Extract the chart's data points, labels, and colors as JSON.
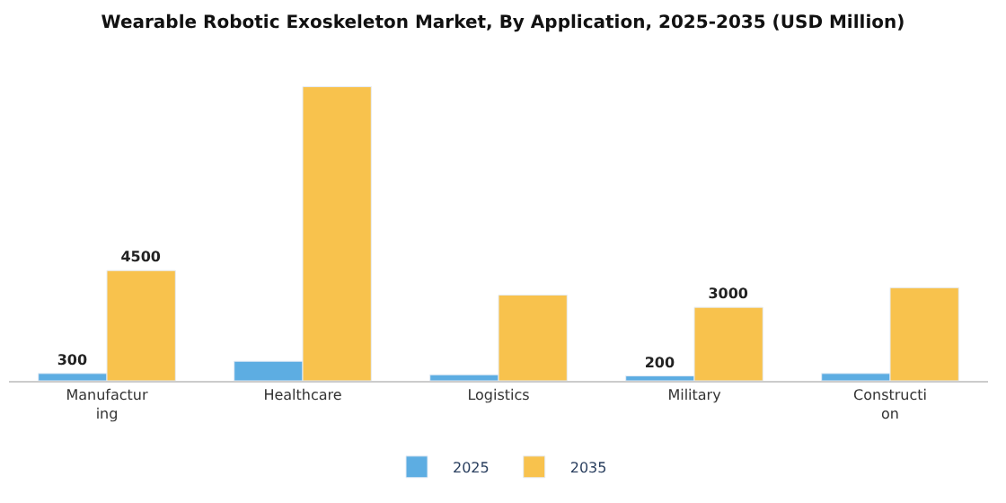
{
  "chart_data": {
    "type": "bar",
    "title": "Wearable Robotic Exoskeleton Market, By Application, 2025-2035 (USD Million)",
    "categories": [
      "Manufacturing",
      "Healthcare",
      "Logistics",
      "Military",
      "Construction"
    ],
    "series": [
      {
        "name": "2025",
        "color": "#5dade2",
        "values": [
          300,
          800,
          250,
          200,
          300
        ],
        "value_labels": [
          "300",
          null,
          null,
          "200",
          null
        ]
      },
      {
        "name": "2035",
        "color": "#f8c24d",
        "values": [
          4500,
          12000,
          3500,
          3000,
          3800
        ],
        "value_labels": [
          "4500",
          null,
          null,
          "3000",
          null
        ]
      }
    ],
    "legend": "bottom"
  }
}
